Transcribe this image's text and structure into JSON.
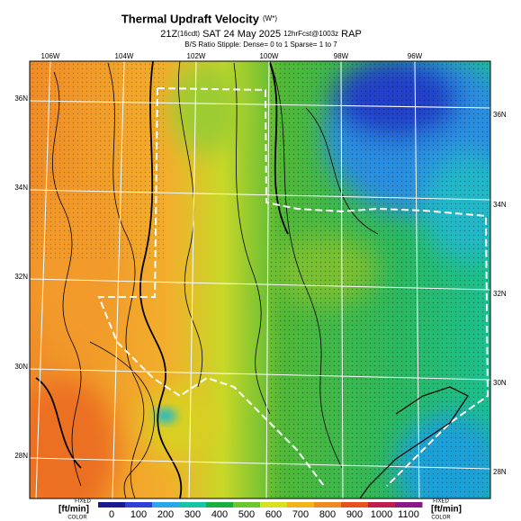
{
  "header": {
    "title": "Thermal Updraft Velocity",
    "title_tag": "(W*)",
    "subtitle_time": "21Z",
    "subtitle_local": "(16cdt)",
    "subtitle_date": "SAT 24 May 2025",
    "subtitle_fcst": "12hrFcst@1003z",
    "subtitle_model": "RAP",
    "stipple_note": "B/S Ratio Stipple: Dense= 0 to 1  Sparse= 1 to 7"
  },
  "map": {
    "top_longitudes": [
      "106W",
      "104W",
      "102W",
      "100W",
      "98W",
      "96W"
    ],
    "left_latitudes": [
      "36N",
      "34N",
      "32N",
      "30N",
      "28N"
    ],
    "right_latitudes": [
      "36N",
      "34N",
      "32N",
      "30N",
      "28N"
    ]
  },
  "colorbar": {
    "left_tag": "FIXED",
    "left_unit": "[ft/min]",
    "left_sub": "COLOR",
    "right_tag": "FIXED",
    "right_unit": "[ft/min]",
    "right_sub": "COLOR",
    "ticks": [
      0,
      100,
      200,
      300,
      400,
      500,
      600,
      700,
      800,
      900,
      1000,
      1100
    ],
    "colors": [
      "#1b1b8f",
      "#2f3fd8",
      "#2aa7e8",
      "#16c6a0",
      "#19b040",
      "#6cc82a",
      "#d8e020",
      "#f2b418",
      "#f08a20",
      "#e8501c",
      "#c01e50",
      "#8a1a8a"
    ]
  }
}
